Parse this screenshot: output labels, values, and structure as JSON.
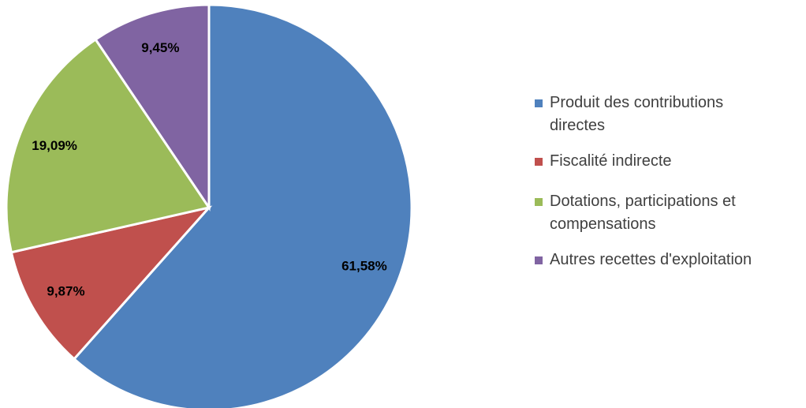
{
  "chart_data": {
    "type": "pie",
    "categories": [
      "Produit des contributions directes",
      "Fiscalité indirecte",
      "Dotations, participations et compensations",
      "Autres recettes d'exploitation"
    ],
    "values": [
      61.58,
      9.87,
      19.09,
      9.45
    ],
    "value_labels": [
      "61,58%",
      "9,87%",
      "19,09%",
      "9,45%"
    ],
    "colors": [
      "#4f81bd",
      "#c0504d",
      "#9bbb59",
      "#8064a2"
    ],
    "legend": "right"
  }
}
